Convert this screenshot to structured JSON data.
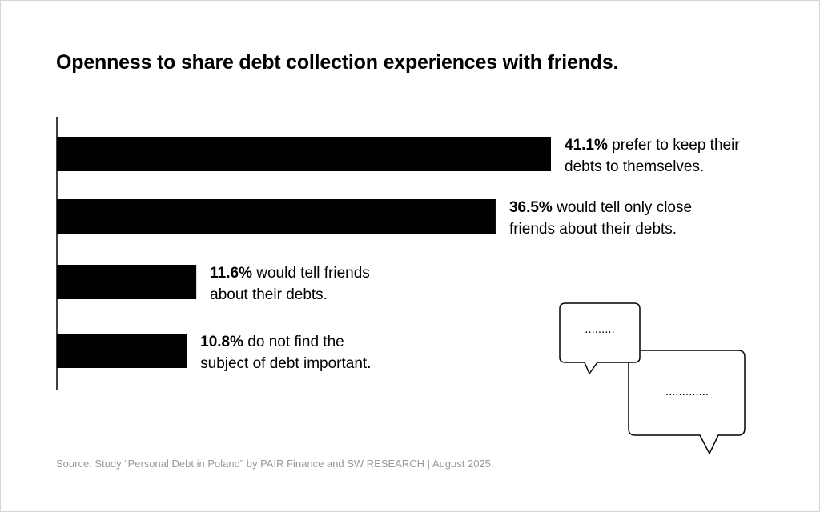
{
  "title": "Openness to share debt collection experiences with friends.",
  "source": "Source: Study “Personal Debt in Poland” by PAIR Finance and SW RESEARCH | August 2025.",
  "bubbles": {
    "small_text": ".........",
    "large_text": "............."
  },
  "colors": {
    "bar": "#000000",
    "source_text": "#9a9a9a"
  },
  "chart_data": {
    "type": "bar",
    "orientation": "horizontal",
    "title": "Openness to share debt collection experiences with friends.",
    "xlabel": "",
    "ylabel": "",
    "xlim": [
      0,
      50
    ],
    "grid": false,
    "values": [
      41.1,
      36.5,
      11.6,
      10.8
    ],
    "labels": [
      {
        "value_text": "41.1%",
        "line1": " prefer to keep their",
        "line2": "debts to themselves."
      },
      {
        "value_text": "36.5%",
        "line1": " would tell only close",
        "line2": "friends about their debts."
      },
      {
        "value_text": "11.6%",
        "line1": " would tell friends",
        "line2": "about their debts."
      },
      {
        "value_text": "10.8%",
        "line1": " do not find the",
        "line2": "subject of debt important."
      }
    ]
  }
}
